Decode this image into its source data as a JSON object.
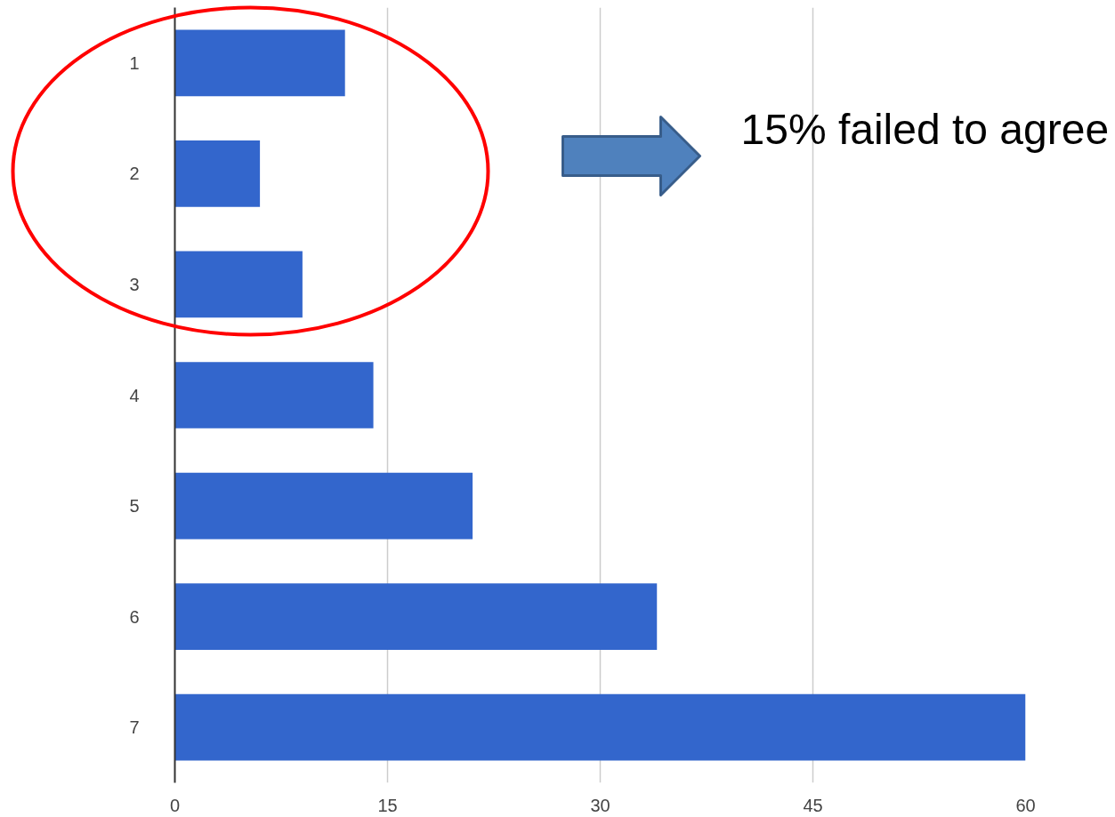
{
  "chart_data": {
    "type": "bar",
    "orientation": "horizontal",
    "categories": [
      "1",
      "2",
      "3",
      "4",
      "5",
      "6",
      "7"
    ],
    "values": [
      12,
      6,
      9,
      14,
      21,
      34,
      60
    ],
    "color": "#3366cc",
    "xlim": [
      0,
      60
    ],
    "xticks": [
      0,
      15,
      30,
      45,
      60
    ],
    "grid": "x",
    "annotations": [
      "15% failed to agree"
    ]
  }
}
